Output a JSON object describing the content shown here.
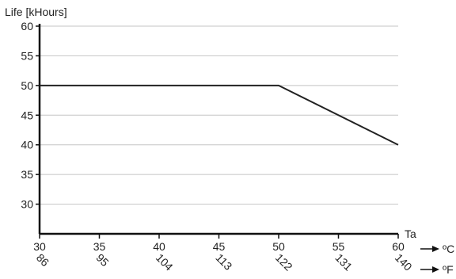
{
  "chart_data": {
    "type": "line",
    "title": "",
    "ylabel": "Life [kHours]",
    "xlabel": "Ta",
    "x_unit_primary": "ºC",
    "x_unit_secondary": "ºF",
    "xlim": [
      30,
      60
    ],
    "ylim": [
      25,
      60
    ],
    "x_ticks_c": [
      "30",
      "35",
      "40",
      "45",
      "50",
      "55",
      "60"
    ],
    "x_ticks_f": [
      "86",
      "95",
      "104",
      "113",
      "122",
      "131",
      "140"
    ],
    "y_ticks": [
      "30",
      "35",
      "40",
      "45",
      "50",
      "55",
      "60"
    ],
    "grid": true,
    "series": [
      {
        "x": [
          30,
          50,
          60
        ],
        "y": [
          50,
          50,
          40
        ]
      }
    ]
  },
  "colors": {
    "line": "#222222",
    "axis": "#111111",
    "grid": "#c4c4c4"
  }
}
